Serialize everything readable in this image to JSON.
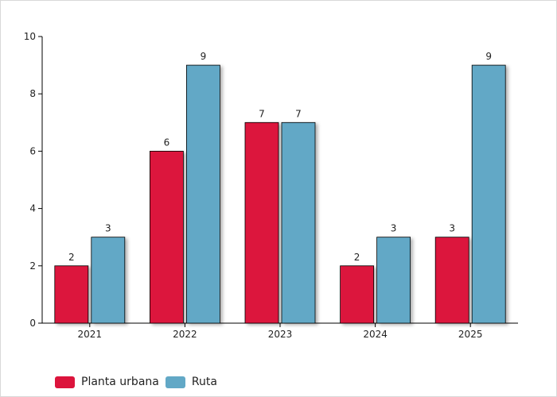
{
  "chart_data": {
    "type": "bar",
    "categories": [
      "2021",
      "2022",
      "2023",
      "2024",
      "2025"
    ],
    "series": [
      {
        "name": "Planta urbana",
        "color": "#DC143C",
        "values": [
          2,
          6,
          7,
          2,
          3
        ]
      },
      {
        "name": "Ruta",
        "color": "#62A8C6",
        "values": [
          3,
          9,
          7,
          3,
          9
        ]
      }
    ],
    "ylim": [
      0,
      10
    ],
    "yticks": [
      "0",
      "2",
      "4",
      "6",
      "8",
      "10"
    ],
    "legend_position": "bottom-left",
    "grid": false
  }
}
